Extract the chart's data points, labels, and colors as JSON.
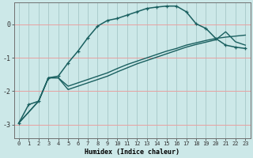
{
  "title": "",
  "xlabel": "Humidex (Indice chaleur)",
  "background_color": "#cce8e8",
  "grid_color_h": "#e8a0a0",
  "grid_color_v": "#aacccc",
  "line_color": "#1a6060",
  "xlim": [
    -0.5,
    23.5
  ],
  "ylim": [
    -3.4,
    0.65
  ],
  "xticks": [
    0,
    1,
    2,
    3,
    4,
    5,
    6,
    7,
    8,
    9,
    10,
    11,
    12,
    13,
    14,
    15,
    16,
    17,
    18,
    19,
    20,
    21,
    22,
    23
  ],
  "yticks": [
    -3,
    -2,
    -1,
    0
  ],
  "curve1_x": [
    0,
    1,
    2,
    3,
    4,
    5,
    6,
    7,
    8,
    9,
    10,
    11,
    12,
    13,
    14,
    15,
    16,
    17,
    18,
    19,
    20,
    21,
    22,
    23
  ],
  "curve1_y": [
    -2.95,
    -2.4,
    -2.3,
    -1.6,
    -1.55,
    -1.15,
    -0.8,
    -0.4,
    -0.05,
    0.12,
    0.18,
    0.28,
    0.38,
    0.48,
    0.52,
    0.55,
    0.55,
    0.38,
    0.02,
    -0.12,
    -0.42,
    -0.62,
    -0.68,
    -0.72
  ],
  "curve2_x": [
    0,
    2,
    3,
    4,
    5,
    6,
    7,
    8,
    9,
    10,
    11,
    12,
    13,
    14,
    15,
    16,
    17,
    18,
    19,
    20,
    21,
    22,
    23
  ],
  "curve2_y": [
    -2.95,
    -2.3,
    -1.6,
    -1.6,
    -1.85,
    -1.75,
    -1.65,
    -1.55,
    -1.45,
    -1.32,
    -1.2,
    -1.1,
    -1.0,
    -0.9,
    -0.8,
    -0.72,
    -0.62,
    -0.55,
    -0.48,
    -0.42,
    -0.38,
    -0.35,
    -0.32
  ],
  "curve3_x": [
    0,
    2,
    3,
    4,
    5,
    6,
    7,
    8,
    9,
    10,
    11,
    12,
    13,
    14,
    15,
    16,
    17,
    18,
    19,
    20,
    21,
    22,
    23
  ],
  "curve3_y": [
    -2.95,
    -2.3,
    -1.6,
    -1.6,
    -1.95,
    -1.85,
    -1.75,
    -1.65,
    -1.55,
    -1.42,
    -1.3,
    -1.18,
    -1.08,
    -0.98,
    -0.88,
    -0.78,
    -0.68,
    -0.6,
    -0.53,
    -0.46,
    -0.22,
    -0.52,
    -0.62
  ]
}
